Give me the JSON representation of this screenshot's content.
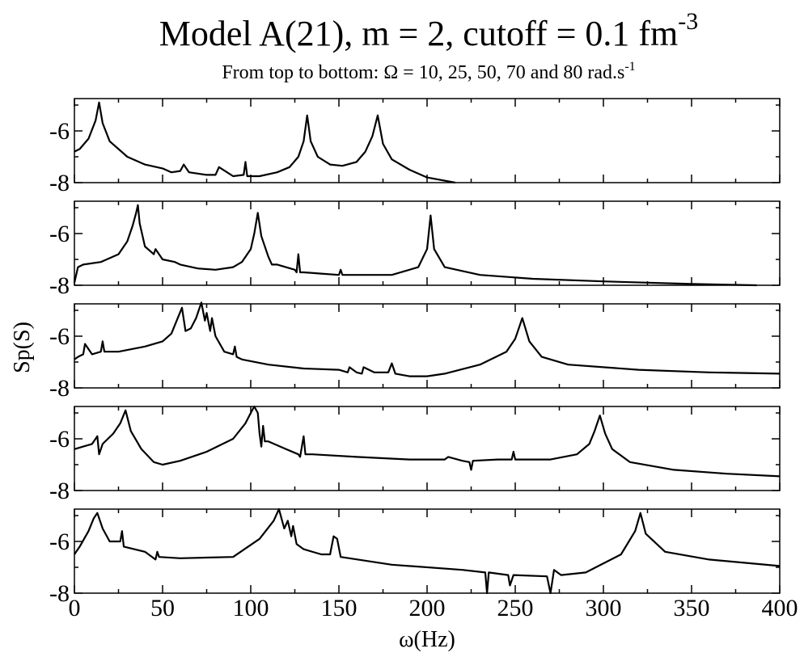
{
  "title": {
    "text": "Model A(21), m = 2, cutoff = 0.1 fm",
    "superscript": "-3"
  },
  "subtitle": {
    "text": "From top to bottom: Ω = 10, 25, 50, 70 and 80 rad.s",
    "superscript": "-1"
  },
  "x_label": "ω(Hz)",
  "y_label": "Sp(S)",
  "chart_data": [
    {
      "type": "line",
      "xlim": [
        0,
        400
      ],
      "xticks": [
        0,
        50,
        100,
        150,
        200,
        250,
        300,
        350,
        400
      ],
      "xminor": [
        25,
        75,
        125,
        175,
        225,
        275,
        325,
        375
      ],
      "ylim": [
        -8,
        -4.75
      ],
      "yticks": [
        -8,
        -6
      ],
      "yminor": [
        -7,
        -5
      ],
      "x": [
        0,
        3,
        8,
        12,
        14,
        16,
        20,
        30,
        40,
        50,
        55,
        60,
        62,
        65,
        75,
        80,
        82,
        90,
        96,
        97,
        98,
        105,
        115,
        122,
        127,
        130,
        132,
        134,
        138,
        145,
        152,
        160,
        165,
        169,
        172,
        175,
        180,
        190,
        200,
        216
      ],
      "series": [
        {
          "color": "#000000",
          "values": [
            -6.8,
            -6.7,
            -6.3,
            -5.6,
            -4.9,
            -5.7,
            -6.4,
            -7.0,
            -7.3,
            -7.45,
            -7.6,
            -7.55,
            -7.3,
            -7.6,
            -7.7,
            -7.7,
            -7.4,
            -7.75,
            -7.7,
            -7.2,
            -7.75,
            -7.75,
            -7.6,
            -7.4,
            -7.0,
            -6.4,
            -5.4,
            -6.4,
            -7.0,
            -7.3,
            -7.35,
            -7.2,
            -6.8,
            -6.2,
            -5.4,
            -6.5,
            -7.1,
            -7.5,
            -7.8,
            -8.0
          ]
        }
      ]
    },
    {
      "type": "line",
      "xlim": [
        0,
        400
      ],
      "xticks": [
        0,
        50,
        100,
        150,
        200,
        250,
        300,
        350,
        400
      ],
      "xminor": [
        25,
        75,
        125,
        175,
        225,
        275,
        325,
        375
      ],
      "ylim": [
        -8,
        -4.75
      ],
      "yticks": [
        -8,
        -6
      ],
      "yminor": [
        -7,
        -5
      ],
      "x": [
        0,
        2,
        5,
        15,
        25,
        30,
        33,
        35,
        36,
        37,
        40,
        45,
        46,
        50,
        57,
        60,
        70,
        80,
        90,
        95,
        100,
        102,
        104,
        106,
        110,
        112,
        115,
        125,
        126,
        127,
        128,
        130,
        140,
        150,
        151,
        152,
        160,
        180,
        195,
        200,
        202,
        204,
        210,
        230,
        260,
        300,
        350,
        387
      ],
      "series": [
        {
          "color": "#000000",
          "values": [
            -7.9,
            -7.3,
            -7.2,
            -7.1,
            -6.8,
            -6.3,
            -5.7,
            -5.2,
            -4.9,
            -5.6,
            -6.5,
            -6.8,
            -6.6,
            -7.0,
            -7.1,
            -7.2,
            -7.35,
            -7.4,
            -7.3,
            -7.1,
            -6.6,
            -6.0,
            -5.2,
            -6.1,
            -6.9,
            -7.2,
            -7.2,
            -7.4,
            -7.5,
            -6.8,
            -7.5,
            -7.5,
            -7.55,
            -7.6,
            -7.4,
            -7.6,
            -7.6,
            -7.6,
            -7.3,
            -6.6,
            -5.3,
            -6.6,
            -7.3,
            -7.6,
            -7.75,
            -7.85,
            -7.95,
            -8.0
          ]
        }
      ]
    },
    {
      "type": "line",
      "xlim": [
        0,
        400
      ],
      "xticks": [
        0,
        50,
        100,
        150,
        200,
        250,
        300,
        350,
        400
      ],
      "xminor": [
        25,
        75,
        125,
        175,
        225,
        275,
        325,
        375
      ],
      "ylim": [
        -8,
        -4.75
      ],
      "yticks": [
        -8,
        -6
      ],
      "yminor": [
        -7,
        -5
      ],
      "x": [
        0,
        2,
        5,
        6,
        10,
        15,
        16,
        17,
        25,
        40,
        50,
        55,
        58,
        61,
        63,
        66,
        69,
        72,
        74,
        75,
        77,
        78,
        80,
        85,
        90,
        91,
        92,
        95,
        110,
        130,
        150,
        155,
        156,
        160,
        163,
        164,
        170,
        178,
        180,
        182,
        190,
        200,
        210,
        230,
        245,
        250,
        254,
        258,
        265,
        280,
        320,
        360,
        400
      ],
      "series": [
        {
          "color": "#000000",
          "values": [
            -6.9,
            -6.8,
            -6.7,
            -6.3,
            -6.7,
            -6.6,
            -6.2,
            -6.6,
            -6.6,
            -6.4,
            -6.2,
            -5.9,
            -5.4,
            -4.9,
            -5.8,
            -5.7,
            -5.3,
            -4.7,
            -5.4,
            -5.1,
            -5.8,
            -5.3,
            -6.0,
            -6.6,
            -6.7,
            -6.4,
            -6.8,
            -6.9,
            -7.1,
            -7.25,
            -7.3,
            -7.4,
            -7.2,
            -7.4,
            -7.45,
            -7.2,
            -7.4,
            -7.4,
            -7.05,
            -7.45,
            -7.55,
            -7.55,
            -7.45,
            -7.1,
            -6.6,
            -6.1,
            -5.3,
            -6.2,
            -6.8,
            -7.1,
            -7.3,
            -7.4,
            -7.45
          ]
        }
      ]
    },
    {
      "type": "line",
      "xlim": [
        0,
        400
      ],
      "xticks": [
        0,
        50,
        100,
        150,
        200,
        250,
        300,
        350,
        400
      ],
      "xminor": [
        25,
        75,
        125,
        175,
        225,
        275,
        325,
        375
      ],
      "ylim": [
        -8,
        -4.75
      ],
      "yticks": [
        -8,
        -6
      ],
      "yminor": [
        -7,
        -5
      ],
      "x": [
        0,
        5,
        10,
        12,
        13,
        14,
        16,
        22,
        26,
        29,
        32,
        38,
        45,
        50,
        60,
        75,
        90,
        97,
        100,
        102,
        104,
        105,
        106,
        107,
        108,
        110,
        120,
        127,
        128,
        130,
        131,
        135,
        160,
        190,
        210,
        212,
        220,
        224,
        225,
        226,
        240,
        248,
        249,
        250,
        270,
        285,
        292,
        295,
        298,
        301,
        305,
        315,
        340,
        370,
        400
      ],
      "series": [
        {
          "color": "#000000",
          "values": [
            -6.4,
            -6.3,
            -6.2,
            -6.0,
            -5.9,
            -6.6,
            -6.2,
            -5.8,
            -5.4,
            -4.9,
            -5.7,
            -6.4,
            -6.9,
            -7.0,
            -6.85,
            -6.5,
            -6.0,
            -5.4,
            -5.0,
            -4.75,
            -5.0,
            -5.8,
            -6.3,
            -5.5,
            -6.1,
            -6.1,
            -6.4,
            -6.6,
            -6.7,
            -5.9,
            -6.6,
            -6.6,
            -6.7,
            -6.8,
            -6.8,
            -6.7,
            -6.85,
            -6.9,
            -7.2,
            -6.85,
            -6.8,
            -6.8,
            -6.5,
            -6.8,
            -6.8,
            -6.6,
            -6.2,
            -5.7,
            -5.1,
            -5.8,
            -6.4,
            -6.9,
            -7.2,
            -7.35,
            -7.45
          ]
        }
      ]
    },
    {
      "type": "line",
      "xlim": [
        0,
        400
      ],
      "xticks": [
        0,
        50,
        100,
        150,
        200,
        250,
        300,
        350,
        400
      ],
      "xminor": [
        25,
        75,
        125,
        175,
        225,
        275,
        325,
        375
      ],
      "ylim": [
        -8,
        -4.75
      ],
      "yticks": [
        -8,
        -6
      ],
      "yminor": [
        -7,
        -5
      ],
      "x": [
        0,
        3,
        8,
        11,
        13,
        16,
        20,
        26,
        27,
        28,
        40,
        46,
        47,
        48,
        60,
        90,
        105,
        113,
        116,
        119,
        121,
        123,
        124,
        126,
        130,
        140,
        145,
        147,
        149,
        151,
        180,
        220,
        233,
        234,
        235,
        246,
        247,
        249,
        268,
        270,
        272,
        276,
        290,
        310,
        318,
        321,
        324,
        335,
        360,
        400
      ],
      "series": [
        {
          "color": "#000000",
          "values": [
            -6.5,
            -6.2,
            -5.6,
            -5.1,
            -4.9,
            -5.5,
            -6.0,
            -6.0,
            -5.6,
            -6.2,
            -6.4,
            -6.7,
            -6.4,
            -6.6,
            -6.65,
            -6.6,
            -5.9,
            -5.2,
            -4.75,
            -5.5,
            -5.2,
            -5.8,
            -5.4,
            -6.1,
            -6.3,
            -6.5,
            -6.5,
            -5.8,
            -5.9,
            -6.6,
            -6.9,
            -7.1,
            -7.2,
            -8.0,
            -7.2,
            -7.3,
            -7.7,
            -7.3,
            -7.35,
            -8.0,
            -7.1,
            -7.3,
            -7.2,
            -6.5,
            -5.6,
            -4.9,
            -5.7,
            -6.4,
            -6.7,
            -6.95
          ]
        }
      ]
    }
  ]
}
